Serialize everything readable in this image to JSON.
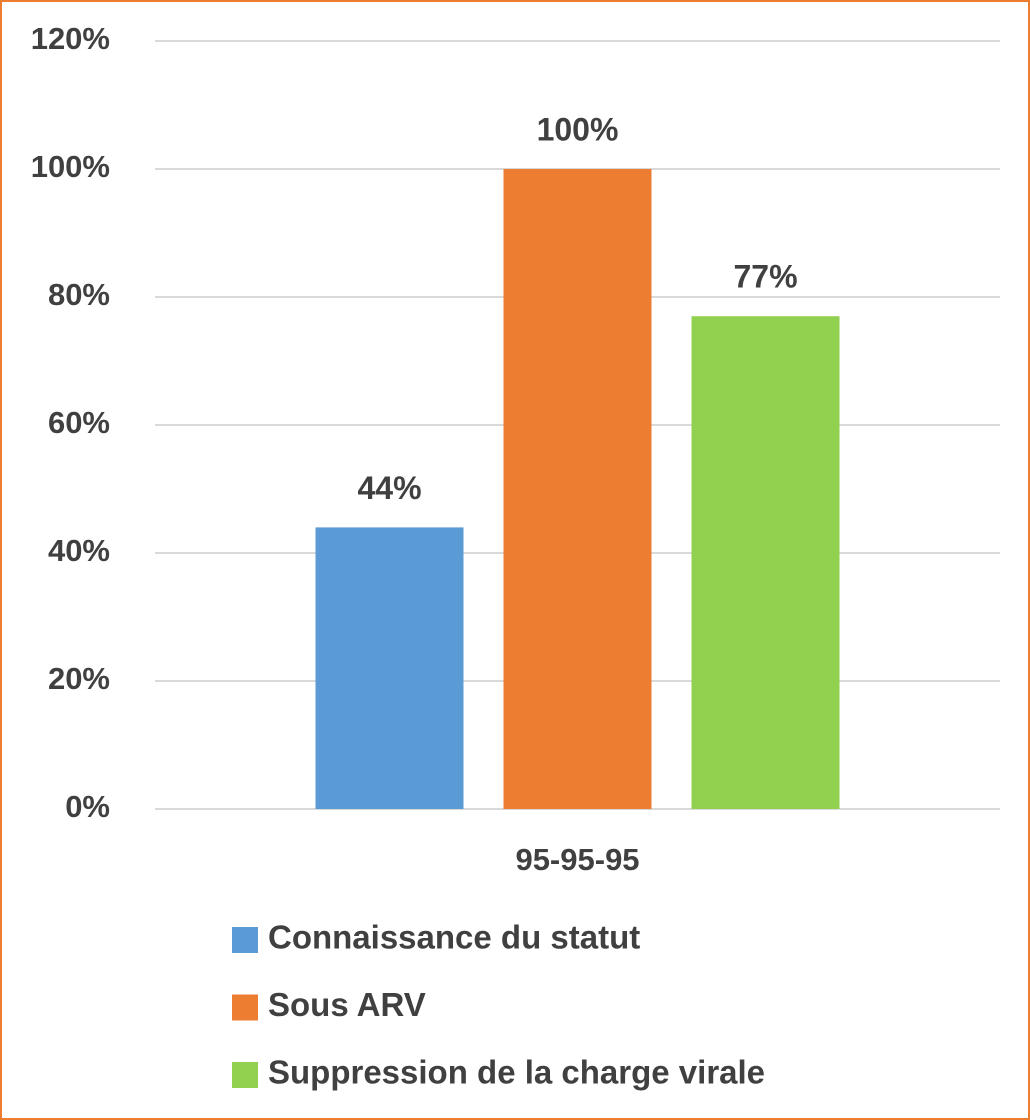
{
  "chart_data": {
    "type": "bar",
    "categories": [
      "95-95-95"
    ],
    "series": [
      {
        "name": "Connaissance du statut",
        "color": "#5b9bd5",
        "values": [
          44
        ],
        "value_labels": [
          "44%"
        ]
      },
      {
        "name": "Sous ARV",
        "color": "#ed7d31",
        "values": [
          100
        ],
        "value_labels": [
          "100%"
        ]
      },
      {
        "name": "Suppression de la charge virale",
        "color": "#92d050",
        "values": [
          77
        ],
        "value_labels": [
          "77%"
        ]
      }
    ],
    "ylim": [
      0,
      120
    ],
    "yticks": [
      {
        "value": 0,
        "label": "0%"
      },
      {
        "value": 20,
        "label": "20%"
      },
      {
        "value": 40,
        "label": "40%"
      },
      {
        "value": 60,
        "label": "60%"
      },
      {
        "value": 80,
        "label": "80%"
      },
      {
        "value": 100,
        "label": "100%"
      },
      {
        "value": 120,
        "label": "120%"
      }
    ],
    "grid": true,
    "legend": "bottom"
  }
}
